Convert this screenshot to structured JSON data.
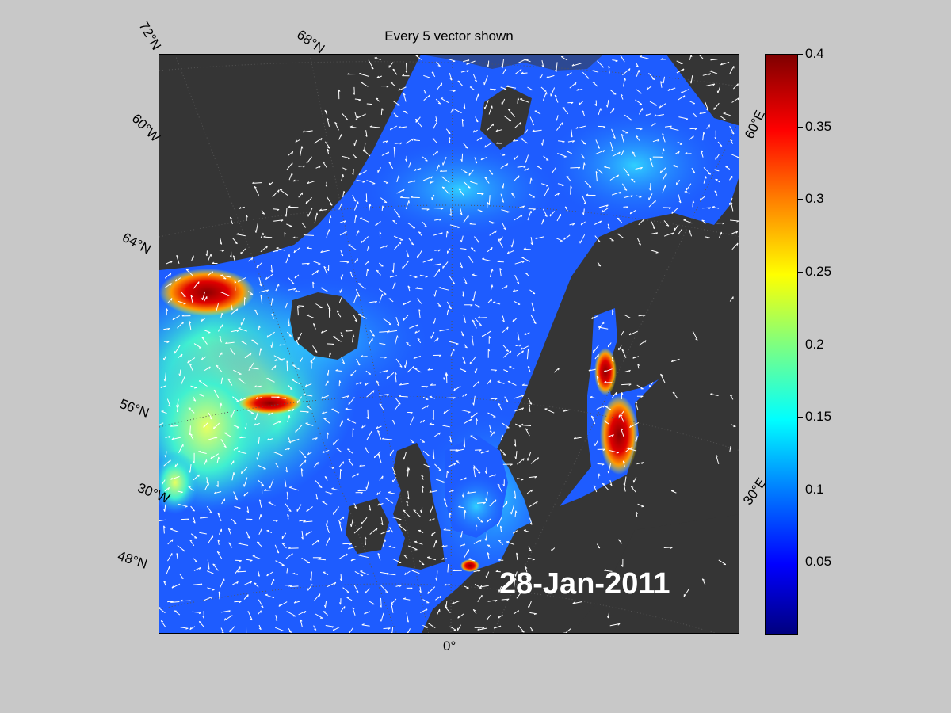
{
  "figure": {
    "title": "Every 5 vector shown",
    "date_stamp": "28-Jan-2011"
  },
  "grid_labels": {
    "lat_72": "72°N",
    "lat_68": "68°N",
    "lat_64": "64°N",
    "lat_56": "56°N",
    "lat_48": "48°N",
    "lon_60w": "60°W",
    "lon_30w": "30°W",
    "lon_0": "0°",
    "lon_30e": "30°E",
    "lon_60e": "60°E"
  },
  "colorbar": {
    "colormap": "jet",
    "range": [
      0,
      0.4
    ],
    "ticks": [
      "0.4",
      "0.35",
      "0.3",
      "0.25",
      "0.2",
      "0.15",
      "0.1",
      "0.05"
    ]
  },
  "colors": {
    "land": "#353535",
    "ocean_base": "#1e5cff",
    "vectors": "#ffffff",
    "background": "#c8c8c8"
  }
}
